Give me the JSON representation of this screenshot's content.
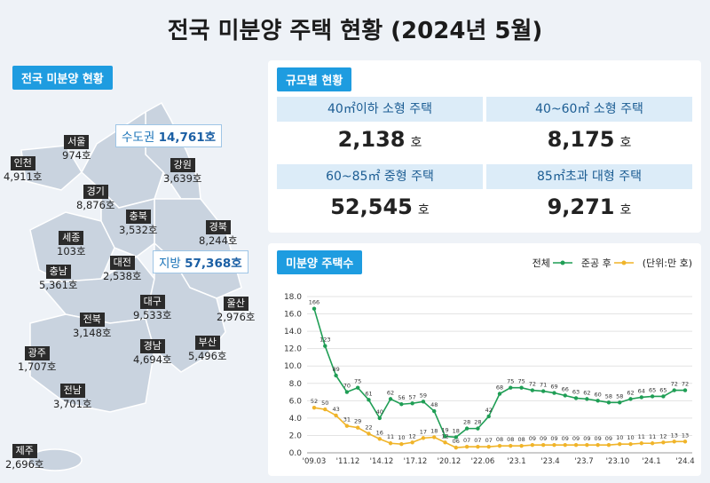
{
  "title": "전국 미분양 주택 현황  (2024년 5월)",
  "map": {
    "tab": "전국 미분양 현황",
    "capital": {
      "label": "수도권",
      "value": "14,761호"
    },
    "local": {
      "label": "지방",
      "value": "57,368호"
    },
    "regions": [
      {
        "name": "서울",
        "value": "974호"
      },
      {
        "name": "인천",
        "value": "4,911호"
      },
      {
        "name": "경기",
        "value": "8,876호"
      },
      {
        "name": "강원",
        "value": "3,639호"
      },
      {
        "name": "충북",
        "value": "3,532호"
      },
      {
        "name": "경북",
        "value": "8,244호"
      },
      {
        "name": "세종",
        "value": "103호"
      },
      {
        "name": "대전",
        "value": "2,538호"
      },
      {
        "name": "충남",
        "value": "5,361호"
      },
      {
        "name": "대구",
        "value": "9,533호"
      },
      {
        "name": "울산",
        "value": "2,976호"
      },
      {
        "name": "전북",
        "value": "3,148호"
      },
      {
        "name": "경남",
        "value": "4,694호"
      },
      {
        "name": "부산",
        "value": "5,496호"
      },
      {
        "name": "광주",
        "value": "1,707호"
      },
      {
        "name": "전남",
        "value": "3,701호"
      },
      {
        "name": "제주",
        "value": "2,696호"
      }
    ]
  },
  "size": {
    "tab": "규모별 현황",
    "cells": [
      {
        "label": "40㎡이하 소형 주택",
        "value": "2,138",
        "unit": "호"
      },
      {
        "label": "40~60㎡ 소형 주택",
        "value": "8,175",
        "unit": "호"
      },
      {
        "label": "60~85㎡ 중형 주택",
        "value": "52,545",
        "unit": "호"
      },
      {
        "label": "85㎡초과 대형 주택",
        "value": "9,271",
        "unit": "호"
      }
    ]
  },
  "chart_panel": {
    "tab": "미분양 주택수",
    "legend_total": "전체",
    "legend_after": "준공 후",
    "unit_note": "(단위:만 호)"
  },
  "colors": {
    "total": "#1f9e55",
    "after": "#f0b429",
    "tab": "#1e9ce0"
  },
  "chart_data": {
    "type": "line",
    "ylim": [
      0,
      18
    ],
    "yticks": [
      "0.0",
      "2.0",
      "4.0",
      "6.0",
      "8.0",
      "10.0",
      "12.0",
      "14.0",
      "16.0",
      "18.0"
    ],
    "xticks": [
      "'09.03",
      "'11.12",
      "'14.12",
      "'17.12",
      "'20.12",
      "'22.06",
      "'23.1",
      "'23.4",
      "'23.7",
      "'23.10",
      "'24.1",
      "'24.4"
    ],
    "grid": true,
    "series": [
      {
        "name": "전체",
        "values": [
          16.6,
          12.3,
          8.9,
          7.0,
          7.5,
          6.1,
          4.0,
          6.2,
          5.6,
          5.7,
          5.9,
          4.8,
          1.9,
          1.8,
          2.8,
          2.8,
          4.2,
          6.8,
          7.5,
          7.5,
          7.2,
          7.1,
          6.9,
          6.6,
          6.3,
          6.2,
          6.0,
          5.8,
          5.8,
          6.2,
          6.4,
          6.5,
          6.5,
          7.2,
          7.2
        ],
        "labels": [
          "166",
          "123",
          "89",
          "70",
          "75",
          "61",
          "40",
          "62",
          "56",
          "57",
          "59",
          "48",
          "19",
          "18",
          "28",
          "28",
          "42",
          "68",
          "75",
          "75",
          "72",
          "71",
          "69",
          "66",
          "63",
          "62",
          "60",
          "58",
          "58",
          "62",
          "64",
          "65",
          "65",
          "72",
          "72"
        ]
      },
      {
        "name": "준공 후",
        "values": [
          5.2,
          5.0,
          4.3,
          3.1,
          2.9,
          2.2,
          1.6,
          1.1,
          1.0,
          1.2,
          1.7,
          1.8,
          1.2,
          0.6,
          0.7,
          0.7,
          0.7,
          0.8,
          0.8,
          0.8,
          0.9,
          0.9,
          0.9,
          0.9,
          0.9,
          0.9,
          0.9,
          0.9,
          1.0,
          1.0,
          1.1,
          1.1,
          1.2,
          1.3,
          1.3
        ],
        "labels": [
          "52",
          "50",
          "43",
          "31",
          "29",
          "22",
          "16",
          "11",
          "10",
          "12",
          "17",
          "18",
          "12",
          "06",
          "07",
          "07",
          "07",
          "08",
          "08",
          "08",
          "09",
          "09",
          "09",
          "09",
          "09",
          "09",
          "09",
          "09",
          "10",
          "10",
          "11",
          "11",
          "12",
          "13",
          "13"
        ]
      }
    ]
  }
}
